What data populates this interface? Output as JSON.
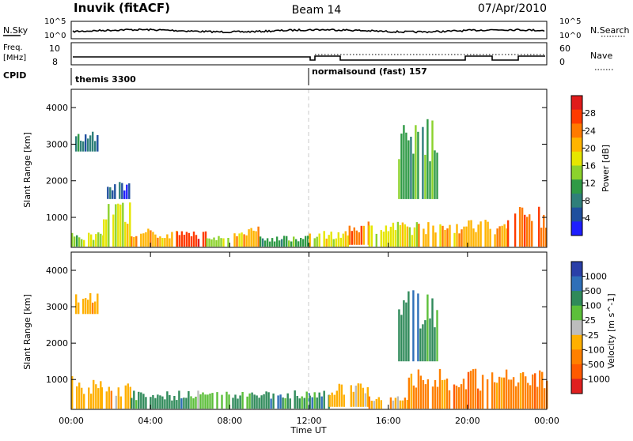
{
  "header": {
    "site": "Inuvik (fitACF)",
    "beam": "Beam 14",
    "date": "07/Apr/2010"
  },
  "strip_labels": {
    "nsky": "N.Sky",
    "nsky_ticks": [
      "10^5",
      "10^0"
    ],
    "nsearch": "N.Search",
    "nsearch_ticks": [
      "10^5",
      "10^0"
    ],
    "freq_title": "Freq.",
    "freq_unit": "[MHz]",
    "freq_ticks": [
      "10",
      "8"
    ],
    "nave": "Nave",
    "nave_ticks": [
      "60",
      "0"
    ],
    "cpid": "CPID"
  },
  "cpid_modes": [
    {
      "label": "themis 3300",
      "start_hour": 0
    },
    {
      "label": "normalsound (fast) 157",
      "start_hour": 12
    }
  ],
  "axes": {
    "ylabel": "Slant Range [km]",
    "xlabel": "Time UT",
    "yticks": [
      "4000",
      "3000",
      "2000",
      "1000"
    ],
    "xticks": [
      "00:00",
      "04:00",
      "08:00",
      "12:00",
      "16:00",
      "20:00",
      "00:00"
    ]
  },
  "power_colorbar": {
    "title": "Power [dB]",
    "labels": [
      "28",
      "24",
      "20",
      "16",
      "12",
      "8",
      "4"
    ],
    "colors": [
      "#e01b1b",
      "#ff3b00",
      "#ff7a00",
      "#ffb400",
      "#e6e600",
      "#8cd22c",
      "#2f9a46",
      "#2f7f7a",
      "#1f4f9e",
      "#1e1eff"
    ]
  },
  "velocity_colorbar": {
    "title": "Velocity [m s^-1]",
    "labels": [
      "1000",
      "500",
      "100",
      "25",
      "-25",
      "-100",
      "-500",
      "-1000"
    ],
    "colors": [
      "#2a3fa8",
      "#2f6fb8",
      "#2f8a5a",
      "#5cbf3a",
      "#bdbdbd",
      "#ffb000",
      "#ff8000",
      "#ff5a00",
      "#e02020"
    ]
  },
  "chart_data": [
    {
      "type": "heatmap",
      "title": "Power",
      "x_range_hours": [
        0,
        24
      ],
      "ylim_km": [
        180,
        4500
      ],
      "colorbar_range_db": [
        0,
        32
      ],
      "regions": [
        {
          "t0": 0.0,
          "t1": 1.6,
          "r0": 200,
          "r1": 600,
          "value_db": 14
        },
        {
          "t0": 1.6,
          "t1": 3.0,
          "r0": 200,
          "r1": 1500,
          "value_db": 16
        },
        {
          "t0": 3.0,
          "t1": 5.3,
          "r0": 200,
          "r1": 700,
          "value_db": 22
        },
        {
          "t0": 5.3,
          "t1": 6.8,
          "r0": 200,
          "r1": 650,
          "value_db": 28
        },
        {
          "t0": 6.8,
          "t1": 8.0,
          "r0": 200,
          "r1": 500,
          "value_db": 14
        },
        {
          "t0": 8.2,
          "t1": 9.5,
          "r0": 200,
          "r1": 750,
          "value_db": 20
        },
        {
          "t0": 9.5,
          "t1": 12.0,
          "r0": 200,
          "r1": 500,
          "value_db": 12
        },
        {
          "t0": 12.0,
          "t1": 14.0,
          "r0": 200,
          "r1": 650,
          "value_db": 16
        },
        {
          "t0": 14.0,
          "t1": 15.0,
          "r0": 250,
          "r1": 1000,
          "value_db": 24
        },
        {
          "t0": 15.0,
          "t1": 17.5,
          "r0": 200,
          "r1": 900,
          "value_db": 16
        },
        {
          "t0": 17.5,
          "t1": 22.0,
          "r0": 200,
          "r1": 950,
          "value_db": 22
        },
        {
          "t0": 22.0,
          "t1": 24.0,
          "r0": 200,
          "r1": 1300,
          "value_db": 24
        },
        {
          "t0": 0.2,
          "t1": 1.3,
          "r0": 2800,
          "r1": 3400,
          "value_db": 8
        },
        {
          "t0": 1.8,
          "t1": 3.0,
          "r0": 1500,
          "r1": 2000,
          "value_db": 6
        },
        {
          "t0": 16.5,
          "t1": 18.5,
          "r0": 1500,
          "r1": 3700,
          "value_db": 10
        }
      ]
    },
    {
      "type": "heatmap",
      "title": "Velocity",
      "x_range_hours": [
        0,
        24
      ],
      "ylim_km": [
        180,
        4500
      ],
      "colorbar_range_ms": [
        -1000,
        1000
      ],
      "regions": [
        {
          "t0": 0.0,
          "t1": 1.5,
          "r0": 200,
          "r1": 1100,
          "value_ms": -100
        },
        {
          "t0": 1.5,
          "t1": 3.0,
          "r0": 200,
          "r1": 900,
          "value_ms": -300
        },
        {
          "t0": 3.0,
          "t1": 6.0,
          "r0": 200,
          "r1": 700,
          "value_ms": 60
        },
        {
          "t0": 6.0,
          "t1": 8.0,
          "r0": 200,
          "r1": 700,
          "value_ms": 0
        },
        {
          "t0": 8.0,
          "t1": 12.0,
          "r0": 200,
          "r1": 700,
          "value_ms": 60
        },
        {
          "t0": 12.0,
          "t1": 13.0,
          "r0": 200,
          "r1": 700,
          "value_ms": 60
        },
        {
          "t0": 13.0,
          "t1": 15.0,
          "r0": 250,
          "r1": 900,
          "value_ms": -200
        },
        {
          "t0": 15.0,
          "t1": 17.0,
          "r0": 200,
          "r1": 600,
          "value_ms": -100
        },
        {
          "t0": 17.0,
          "t1": 24.0,
          "r0": 200,
          "r1": 1300,
          "value_ms": -350
        },
        {
          "t0": 0.2,
          "t1": 1.3,
          "r0": 2800,
          "r1": 3400,
          "value_ms": -100
        },
        {
          "t0": 16.5,
          "t1": 18.5,
          "r0": 1500,
          "r1": 3500,
          "value_ms": 60
        }
      ]
    }
  ]
}
